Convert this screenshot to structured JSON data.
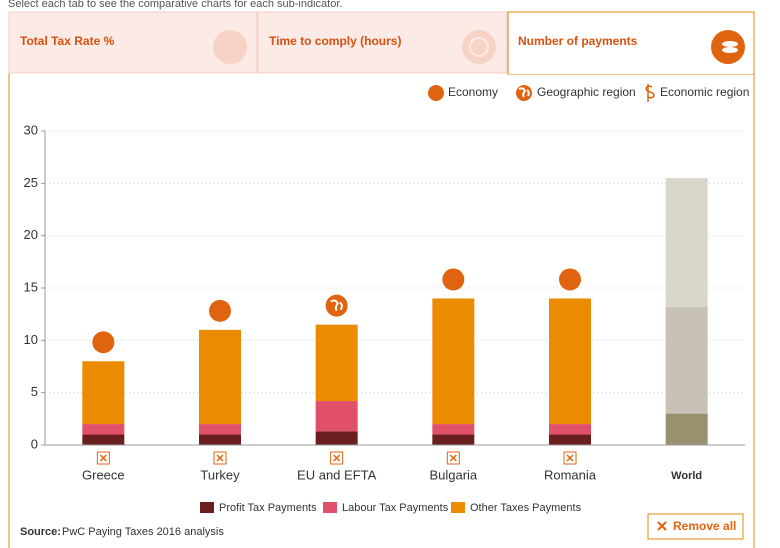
{
  "instruction": "Select each tab to see the comparative charts for each sub-indicator.",
  "tabs": [
    "Total Tax Rate %",
    "Time to comply (hours)",
    "Number of payments"
  ],
  "marker_legend": [
    "Economy",
    "Geographic region",
    "Economic region"
  ],
  "source": {
    "label": "Source:",
    "text": "PwC Paying Taxes 2016 analysis"
  },
  "button": "Remove all",
  "chart_data": {
    "type": "stacked-bar",
    "categories": [
      "Greece",
      "Turkey",
      "EU and EFTA",
      "Bulgaria",
      "Romania",
      "World"
    ],
    "series": [
      {
        "name": "Profit Tax Payments",
        "color": "#6b1e1e",
        "muted_color": "#9a8f6e",
        "values": [
          1,
          1,
          1.3,
          1,
          1,
          3
        ]
      },
      {
        "name": "Labour Tax Payments",
        "color": "#e0506a",
        "muted_color": "#c8c2b4",
        "values": [
          1,
          1,
          2.9,
          1,
          1,
          10.2
        ]
      },
      {
        "name": "Other Taxes Payments",
        "color": "#eb8c00",
        "muted_color": "#dad6cc",
        "values": [
          6,
          9,
          7.3,
          12,
          12,
          12.3
        ]
      }
    ],
    "ylim": [
      0,
      30
    ],
    "yticks": [
      0,
      5,
      10,
      15,
      20,
      25,
      30
    ],
    "grid": true
  }
}
